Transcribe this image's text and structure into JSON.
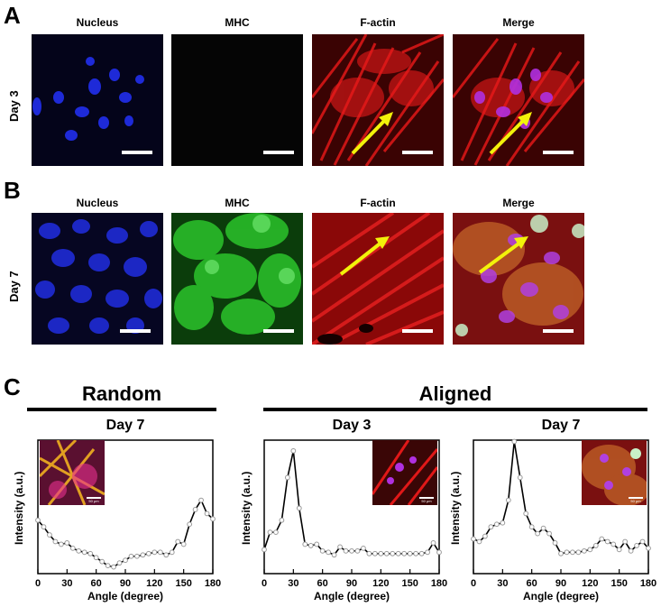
{
  "panel_letters": {
    "a": "A",
    "b": "B",
    "c": "C"
  },
  "columns": [
    "Nucleus",
    "MHC",
    "F-actin",
    "Merge"
  ],
  "rows": {
    "day3": "Day 3",
    "day7": "Day 7"
  },
  "groups": {
    "random": "Random",
    "aligned": "Aligned"
  },
  "inset_scale": "50 μm",
  "colors": {
    "nucleus": "#1f2bd6",
    "mhc": "#2fd52f",
    "factin": "#e01818",
    "arrow": "#f2f20a",
    "marker": "#9a9a9a"
  },
  "chart_data": [
    {
      "type": "line",
      "title": "Day 7",
      "group": "Random",
      "xlabel": "Angle (degree)",
      "ylabel": "Intensity (a.u.)",
      "xlim": [
        0,
        180
      ],
      "xticks": [
        0,
        30,
        60,
        90,
        120,
        150,
        180
      ],
      "x": [
        0,
        6,
        12,
        18,
        24,
        30,
        36,
        42,
        48,
        54,
        60,
        66,
        72,
        78,
        84,
        90,
        96,
        102,
        108,
        114,
        120,
        126,
        132,
        138,
        144,
        150,
        156,
        162,
        168,
        174,
        180
      ],
      "y": [
        0.4,
        0.35,
        0.29,
        0.24,
        0.22,
        0.23,
        0.19,
        0.17,
        0.16,
        0.15,
        0.12,
        0.09,
        0.06,
        0.05,
        0.08,
        0.1,
        0.13,
        0.13,
        0.14,
        0.15,
        0.16,
        0.16,
        0.14,
        0.16,
        0.24,
        0.22,
        0.37,
        0.48,
        0.55,
        0.45,
        0.41
      ],
      "has_inset": true
    },
    {
      "type": "line",
      "title": "Day 3",
      "group": "Aligned",
      "xlabel": "Angle (degree)",
      "ylabel": "Intensity (a.u.)",
      "xlim": [
        0,
        180
      ],
      "xticks": [
        0,
        30,
        60,
        90,
        120,
        150,
        180
      ],
      "x": [
        0,
        6,
        12,
        18,
        24,
        30,
        36,
        42,
        48,
        54,
        60,
        66,
        72,
        78,
        84,
        90,
        96,
        102,
        108,
        114,
        120,
        126,
        132,
        138,
        144,
        150,
        156,
        162,
        168,
        174,
        180
      ],
      "y": [
        0.18,
        0.31,
        0.31,
        0.4,
        0.72,
        0.92,
        0.49,
        0.22,
        0.21,
        0.22,
        0.17,
        0.16,
        0.14,
        0.2,
        0.17,
        0.17,
        0.17,
        0.19,
        0.15,
        0.15,
        0.15,
        0.15,
        0.15,
        0.15,
        0.15,
        0.15,
        0.15,
        0.15,
        0.16,
        0.23,
        0.16
      ],
      "has_inset": true
    },
    {
      "type": "line",
      "title": "Day 7",
      "group": "Aligned",
      "xlabel": "Angle (degree)",
      "ylabel": "Intensity (a.u.)",
      "xlim": [
        0,
        180
      ],
      "xticks": [
        0,
        30,
        60,
        90,
        120,
        150,
        180
      ],
      "x": [
        0,
        6,
        12,
        18,
        24,
        30,
        36,
        42,
        48,
        54,
        60,
        66,
        72,
        78,
        84,
        90,
        96,
        102,
        108,
        114,
        120,
        126,
        132,
        138,
        144,
        150,
        156,
        162,
        168,
        174,
        180
      ],
      "y": [
        0.26,
        0.24,
        0.28,
        0.35,
        0.37,
        0.38,
        0.55,
        0.99,
        0.72,
        0.45,
        0.35,
        0.3,
        0.34,
        0.3,
        0.23,
        0.15,
        0.16,
        0.16,
        0.16,
        0.17,
        0.18,
        0.21,
        0.26,
        0.24,
        0.22,
        0.18,
        0.24,
        0.17,
        0.21,
        0.24,
        0.19
      ],
      "has_inset": true
    }
  ]
}
